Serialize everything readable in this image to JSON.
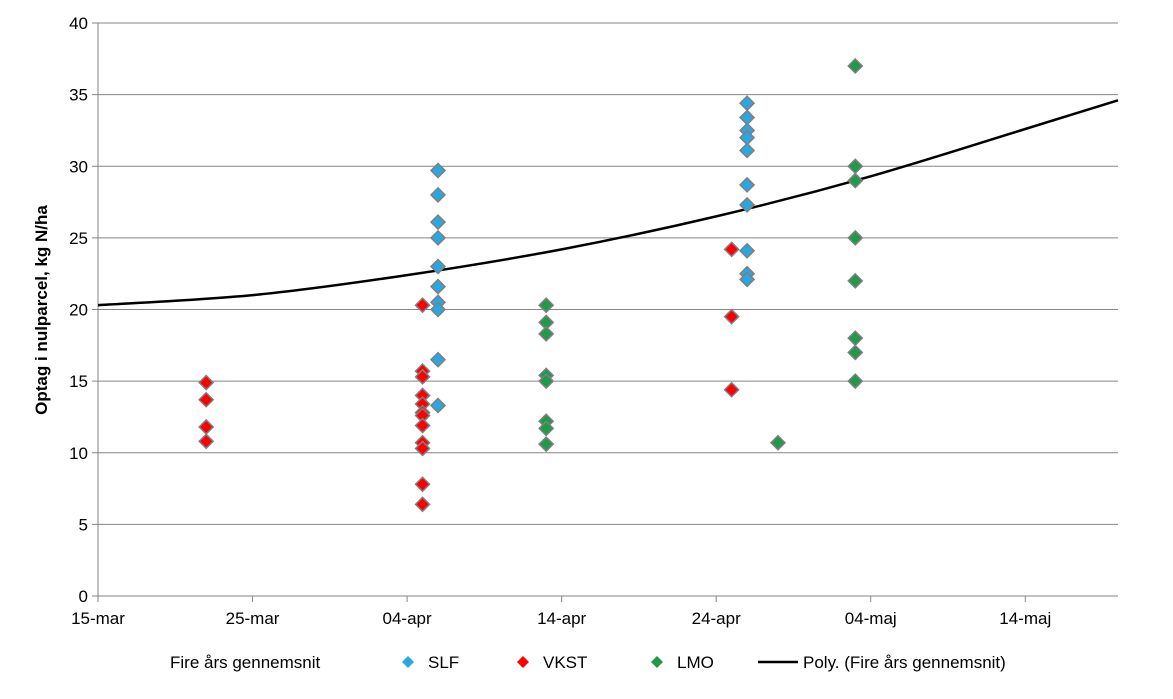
{
  "chart_data": {
    "type": "scatter",
    "title": "",
    "xlabel": "",
    "ylabel": "Optag i nulparcel, kg N/ha",
    "ylim": [
      0,
      40
    ],
    "yticks": [
      "0",
      "5",
      "10",
      "15",
      "20",
      "25",
      "30",
      "35",
      "40"
    ],
    "xlim": [
      "2014-03-15",
      "2014-05-20"
    ],
    "xticks": [
      {
        "date": "2014-03-15",
        "label": "15-mar"
      },
      {
        "date": "2014-03-25",
        "label": "25-mar"
      },
      {
        "date": "2014-04-04",
        "label": "04-apr"
      },
      {
        "date": "2014-04-14",
        "label": "14-apr"
      },
      {
        "date": "2014-04-24",
        "label": "24-apr"
      },
      {
        "date": "2014-05-04",
        "label": "04-maj"
      },
      {
        "date": "2014-05-14",
        "label": "14-maj"
      }
    ],
    "grid": "horizontal",
    "legend_position": "bottom",
    "legend_first_entry": "Fire års gennemsnit",
    "series": [
      {
        "name": "SLF",
        "color": "#29a7e1",
        "marker": "diamond",
        "points": [
          [
            "2014-04-06",
            29.7
          ],
          [
            "2014-04-06",
            28.0
          ],
          [
            "2014-04-06",
            26.1
          ],
          [
            "2014-04-06",
            25.0
          ],
          [
            "2014-04-06",
            23.0
          ],
          [
            "2014-04-06",
            21.6
          ],
          [
            "2014-04-06",
            20.5
          ],
          [
            "2014-04-06",
            20.0
          ],
          [
            "2014-04-06",
            16.5
          ],
          [
            "2014-04-06",
            13.3
          ],
          [
            "2014-04-26",
            34.4
          ],
          [
            "2014-04-26",
            33.4
          ],
          [
            "2014-04-26",
            32.5
          ],
          [
            "2014-04-26",
            32.0
          ],
          [
            "2014-04-26",
            31.1
          ],
          [
            "2014-04-26",
            28.7
          ],
          [
            "2014-04-26",
            27.3
          ],
          [
            "2014-04-26",
            24.1
          ],
          [
            "2014-04-26",
            22.5
          ],
          [
            "2014-04-26",
            22.1
          ]
        ]
      },
      {
        "name": "VKST",
        "color": "#ff0000",
        "marker": "diamond",
        "points": [
          [
            "2014-03-22",
            14.9
          ],
          [
            "2014-03-22",
            13.7
          ],
          [
            "2014-03-22",
            11.8
          ],
          [
            "2014-03-22",
            10.8
          ],
          [
            "2014-04-05",
            20.3
          ],
          [
            "2014-04-05",
            15.7
          ],
          [
            "2014-04-05",
            15.3
          ],
          [
            "2014-04-05",
            14.0
          ],
          [
            "2014-04-05",
            13.4
          ],
          [
            "2014-04-05",
            12.8
          ],
          [
            "2014-04-05",
            12.6
          ],
          [
            "2014-04-05",
            11.9
          ],
          [
            "2014-04-05",
            10.7
          ],
          [
            "2014-04-05",
            10.3
          ],
          [
            "2014-04-05",
            7.8
          ],
          [
            "2014-04-05",
            6.4
          ],
          [
            "2014-04-25",
            24.2
          ],
          [
            "2014-04-25",
            19.5
          ],
          [
            "2014-04-25",
            14.4
          ]
        ]
      },
      {
        "name": "LMO",
        "color": "#1f9a4b",
        "marker": "diamond",
        "points": [
          [
            "2014-04-13",
            20.3
          ],
          [
            "2014-04-13",
            19.1
          ],
          [
            "2014-04-13",
            18.3
          ],
          [
            "2014-04-13",
            15.4
          ],
          [
            "2014-04-13",
            15.0
          ],
          [
            "2014-04-13",
            12.2
          ],
          [
            "2014-04-13",
            11.7
          ],
          [
            "2014-04-13",
            10.6
          ],
          [
            "2014-04-28",
            10.7
          ],
          [
            "2014-05-03",
            37.0
          ],
          [
            "2014-05-03",
            30.0
          ],
          [
            "2014-05-03",
            29.0
          ],
          [
            "2014-05-03",
            25.0
          ],
          [
            "2014-05-03",
            22.0
          ],
          [
            "2014-05-03",
            18.0
          ],
          [
            "2014-05-03",
            17.0
          ],
          [
            "2014-05-03",
            15.0
          ]
        ]
      }
    ],
    "trendline": {
      "name": "Poly. (Fire års gennemsnit)",
      "color": "#000000",
      "points": [
        [
          "2014-03-15",
          20.3
        ],
        [
          "2014-03-25",
          21.0
        ],
        [
          "2014-04-04",
          22.4
        ],
        [
          "2014-04-14",
          24.2
        ],
        [
          "2014-04-24",
          26.5
        ],
        [
          "2014-05-04",
          29.3
        ],
        [
          "2014-05-14",
          32.6
        ],
        [
          "2014-05-20",
          34.6
        ]
      ]
    }
  }
}
